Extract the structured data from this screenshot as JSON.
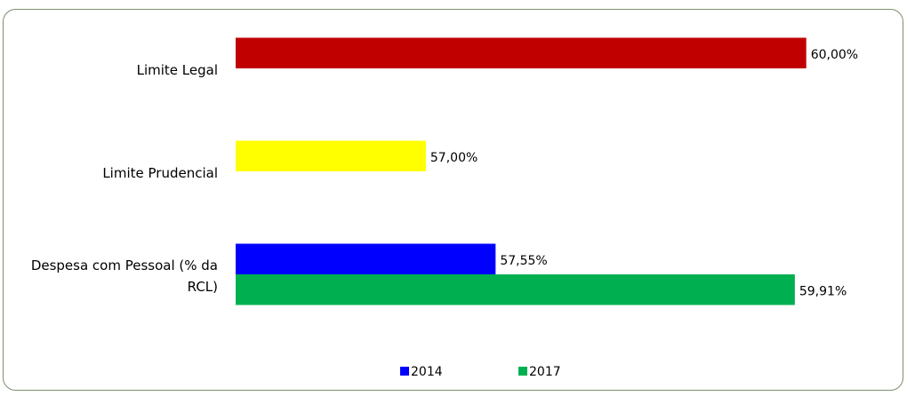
{
  "chart_data": {
    "type": "barh",
    "categories": [
      "Limite Legal",
      "Limite Prudencial",
      "Despesa com Pessoal (% da RCL)"
    ],
    "series": [
      {
        "name": "2014",
        "color": "#0000ff",
        "colors": [
          "#c00000",
          "#ffff00",
          "#0000ff"
        ],
        "values": [
          60,
          57,
          57.55
        ],
        "value_labels": [
          "60,00%",
          "57,00%",
          "57,55%"
        ]
      },
      {
        "name": "2017",
        "color": "#00b050",
        "values": [
          null,
          null,
          59.91
        ],
        "value_labels": [
          null,
          null,
          "59,91%"
        ]
      }
    ],
    "xlim": [
      55.5,
      60.5
    ],
    "legend": "bottom"
  }
}
